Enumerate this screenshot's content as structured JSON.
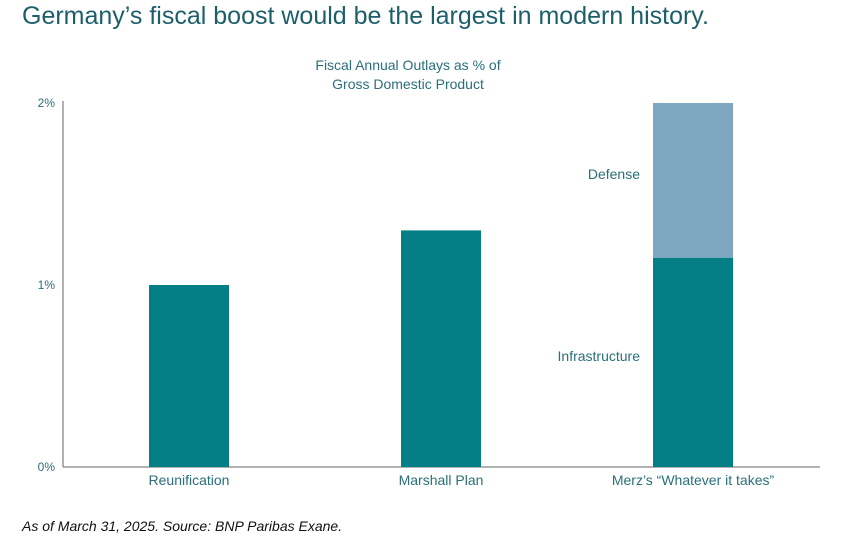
{
  "headline": "Germany’s fiscal boost would be the largest in modern history.",
  "footnote": "As of March 31, 2025. Source: BNP Paribas Exane.",
  "colors": {
    "headline": "#1c5f6b",
    "axis_text": "#2a6f7a",
    "primary": "#037f85",
    "defense": "#7fa7c2",
    "axis_line": "#666666"
  },
  "chart_data": {
    "type": "bar",
    "stacked": true,
    "title_lines": [
      "Fiscal Annual Outlays as % of",
      "Gross Domestic Product"
    ],
    "categories": [
      "Reunification",
      "Marshall Plan",
      "Merz’s “Whatever it takes”"
    ],
    "series": [
      {
        "name": "Infrastructure",
        "color": "#037f85",
        "values": [
          1.0,
          1.3,
          1.15
        ]
      },
      {
        "name": "Defense",
        "color": "#7fa7c2",
        "values": [
          0,
          0,
          0.85
        ]
      }
    ],
    "segment_labels": [
      {
        "text": "Defense",
        "category_index": 2,
        "series_index": 1
      },
      {
        "text": "Infrastructure",
        "category_index": 2,
        "series_index": 0
      }
    ],
    "y_ticks": [
      {
        "value": 0,
        "label": "0%"
      },
      {
        "value": 1,
        "label": "1%"
      },
      {
        "value": 2,
        "label": "2%"
      }
    ],
    "ylim": [
      0,
      2
    ],
    "grid": false,
    "legend": "none"
  }
}
